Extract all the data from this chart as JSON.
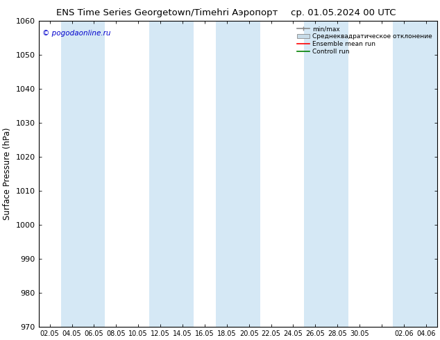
{
  "title_left": "ENS Time Series Georgetown/Timehri Аэропорт",
  "title_right": "ср. 01.05.2024 00 UTC",
  "ylabel": "Surface Pressure (hPa)",
  "ylim": [
    970,
    1060
  ],
  "yticks": [
    970,
    980,
    990,
    1000,
    1010,
    1020,
    1030,
    1040,
    1050,
    1060
  ],
  "xtick_labels": [
    "02.05",
    "04.05",
    "06.05",
    "08.05",
    "10.05",
    "12.05",
    "14.05",
    "16.05",
    "18.05",
    "20.05",
    "22.05",
    "24.05",
    "26.05",
    "28.05",
    "30.05",
    "",
    "02.06",
    "04.06"
  ],
  "copyright": "© pogodaonline.ru",
  "legend_items": [
    {
      "label": "min/max",
      "color": "#aaaaaa",
      "type": "minmax"
    },
    {
      "label": "Среднеквадратическое отклонение",
      "color": "#c8dce8",
      "type": "band"
    },
    {
      "label": "Ensemble mean run",
      "color": "red",
      "type": "line"
    },
    {
      "label": "Controll run",
      "color": "green",
      "type": "line"
    }
  ],
  "shaded_band_color": "#d5e8f5",
  "background_color": "#ffffff",
  "plot_bg_color": "#ffffff",
  "n_xticks": 18
}
